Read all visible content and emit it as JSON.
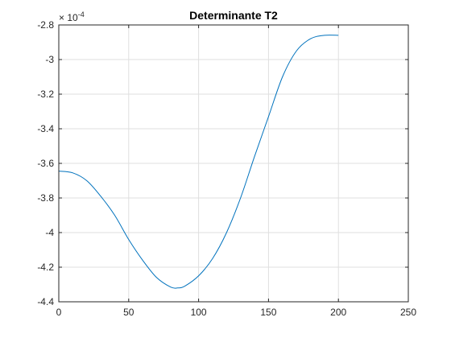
{
  "chart_data": {
    "type": "line",
    "title": "Determinante T2",
    "xlabel": "",
    "ylabel": "",
    "xlim": [
      0,
      250
    ],
    "ylim": [
      -4.4,
      -2.8
    ],
    "y_exponent_label": "× 10",
    "y_exponent_value": "-4",
    "x_ticks": [
      0,
      50,
      100,
      150,
      200,
      250
    ],
    "x_tick_labels": [
      "0",
      "50",
      "100",
      "150",
      "200",
      "250"
    ],
    "y_ticks": [
      -4.4,
      -4.2,
      -4.0,
      -3.8,
      -3.6,
      -3.4,
      -3.2,
      -3.0,
      -2.8
    ],
    "y_tick_labels": [
      "-4.4",
      "-4.2",
      "-4",
      "-3.8",
      "-3.6",
      "-3.4",
      "-3.2",
      "-3",
      "-2.8"
    ],
    "grid": true,
    "series": [
      {
        "color": "#0072BD",
        "x": [
          0,
          10,
          20,
          30,
          40,
          50,
          60,
          70,
          80,
          85,
          90,
          100,
          110,
          120,
          130,
          140,
          150,
          160,
          170,
          180,
          190,
          200
        ],
        "y": [
          -3.645,
          -3.655,
          -3.7,
          -3.79,
          -3.9,
          -4.04,
          -4.16,
          -4.26,
          -4.315,
          -4.32,
          -4.31,
          -4.25,
          -4.15,
          -4.0,
          -3.8,
          -3.56,
          -3.33,
          -3.1,
          -2.95,
          -2.88,
          -2.86,
          -2.86
        ]
      }
    ]
  }
}
